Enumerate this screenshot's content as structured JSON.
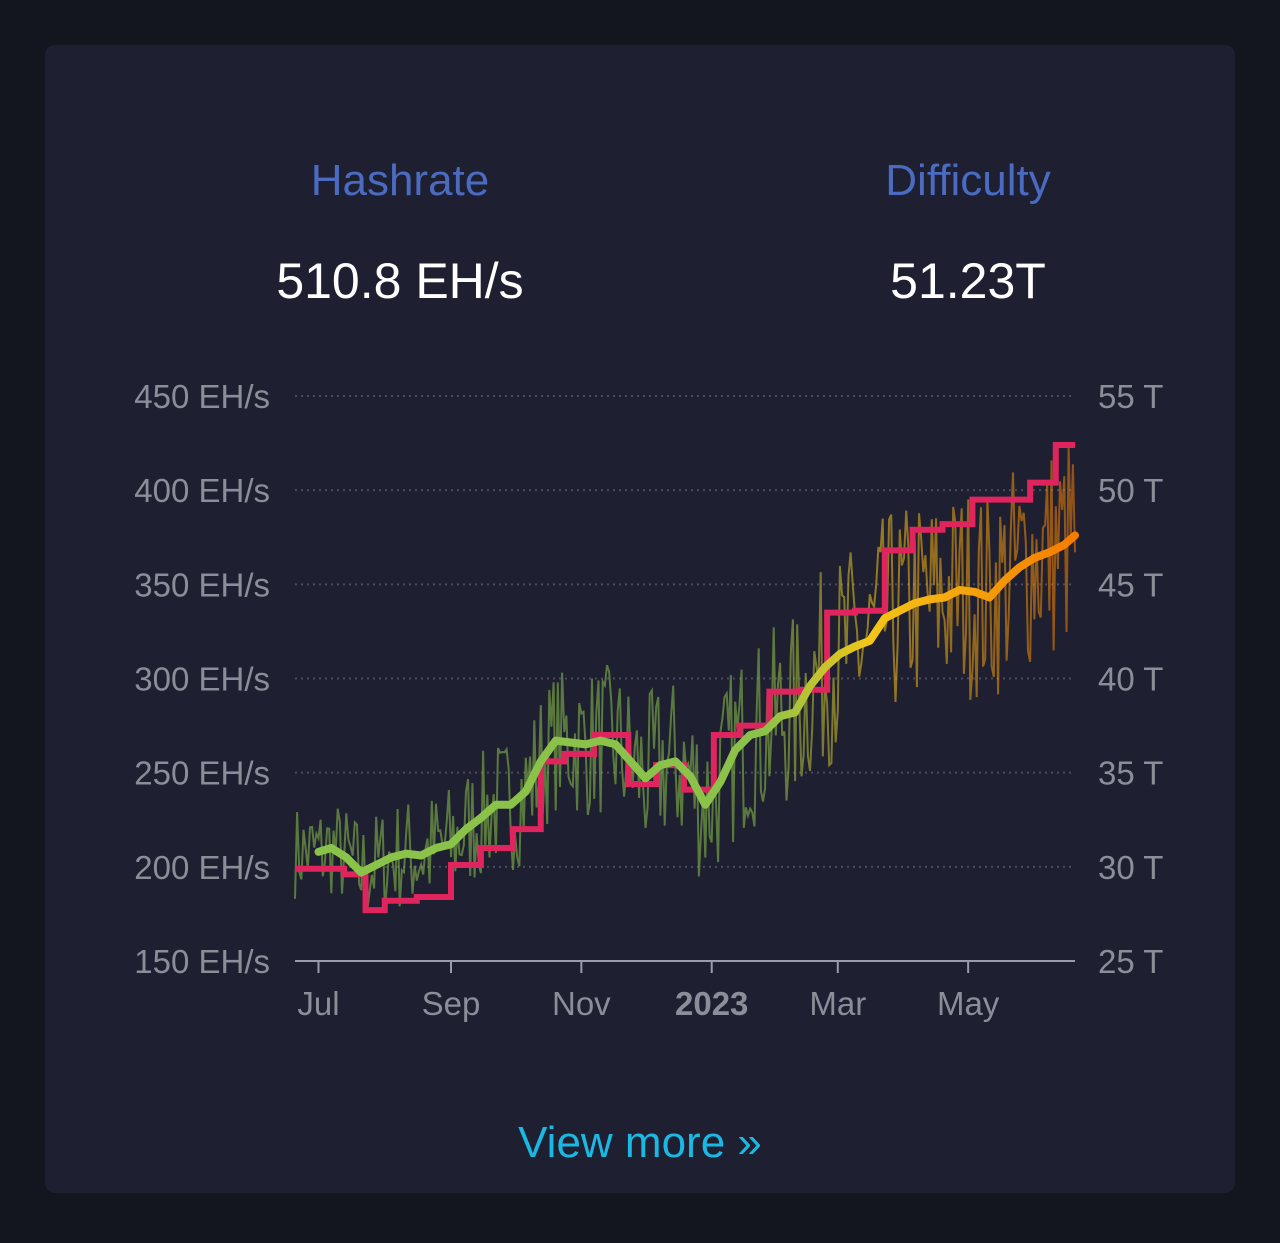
{
  "stats": {
    "hashrate_label": "Hashrate",
    "hashrate_value": "510.8 EH/s",
    "difficulty_label": "Difficulty",
    "difficulty_value": "51.23T"
  },
  "view_more_label": "View more »",
  "colors": {
    "difficulty_line": "#e0245e",
    "hashrate_ma_green": "#8bc34a",
    "hashrate_ma_yellow": "#f5c518",
    "hashrate_ma_orange": "#f57c00",
    "grid": "#4a4c5e",
    "tick_text": "#8b8d99"
  },
  "chart_data": {
    "type": "line",
    "x_axis": {
      "tick_labels": [
        "Jul",
        "Sep",
        "Nov",
        "2023",
        "Mar",
        "May"
      ],
      "tick_dates": [
        "2022-07-01",
        "2022-09-01",
        "2022-11-01",
        "2023-01-01",
        "2023-03-01",
        "2023-05-01"
      ],
      "range": [
        "2022-06-20",
        "2023-06-20"
      ]
    },
    "y_left": {
      "tick_labels": [
        "450 EH/s",
        "400 EH/s",
        "350 EH/s",
        "300 EH/s",
        "250 EH/s",
        "200 EH/s",
        "150 EH/s"
      ],
      "ylim": [
        150,
        450
      ]
    },
    "y_right": {
      "tick_labels": [
        "55 T",
        "50 T",
        "45 T",
        "40 T",
        "35 T",
        "30 T",
        "25 T"
      ],
      "ylim": [
        25,
        55
      ]
    },
    "grid": true,
    "series": [
      {
        "kind": "difficulty_step",
        "axis": "right",
        "points": [
          [
            "2022-06-20",
            29.9
          ],
          [
            "2022-07-13",
            29.6
          ],
          [
            "2022-07-23",
            27.7
          ],
          [
            "2022-08-01",
            28.2
          ],
          [
            "2022-08-16",
            28.4
          ],
          [
            "2022-09-01",
            30.1
          ],
          [
            "2022-09-15",
            31.0
          ],
          [
            "2022-09-30",
            32.0
          ],
          [
            "2022-10-13",
            35.6
          ],
          [
            "2022-10-24",
            36.0
          ],
          [
            "2022-11-07",
            37.0
          ],
          [
            "2022-11-23",
            34.4
          ],
          [
            "2022-12-06",
            35.4
          ],
          [
            "2022-12-19",
            34.1
          ],
          [
            "2023-01-02",
            37.0
          ],
          [
            "2023-01-14",
            37.5
          ],
          [
            "2023-01-28",
            39.3
          ],
          [
            "2023-02-11",
            39.4
          ],
          [
            "2023-02-24",
            43.5
          ],
          [
            "2023-03-09",
            43.6
          ],
          [
            "2023-03-23",
            46.8
          ],
          [
            "2023-04-05",
            47.9
          ],
          [
            "2023-04-19",
            48.2
          ],
          [
            "2023-05-03",
            49.5
          ],
          [
            "2023-05-17",
            49.5
          ],
          [
            "2023-05-30",
            50.4
          ],
          [
            "2023-06-11",
            52.4
          ],
          [
            "2023-06-20",
            52.4
          ]
        ]
      },
      {
        "kind": "hashrate_moving_average",
        "axis": "left",
        "points": [
          [
            "2022-06-20",
            208
          ],
          [
            "2022-07-01",
            208
          ],
          [
            "2022-07-07",
            210
          ],
          [
            "2022-07-14",
            205
          ],
          [
            "2022-07-21",
            197
          ],
          [
            "2022-07-28",
            201
          ],
          [
            "2022-08-04",
            205
          ],
          [
            "2022-08-11",
            207
          ],
          [
            "2022-08-18",
            206
          ],
          [
            "2022-08-25",
            210
          ],
          [
            "2022-09-01",
            212
          ],
          [
            "2022-09-08",
            220
          ],
          [
            "2022-09-15",
            226
          ],
          [
            "2022-09-22",
            233
          ],
          [
            "2022-09-29",
            233
          ],
          [
            "2022-10-06",
            240
          ],
          [
            "2022-10-13",
            256
          ],
          [
            "2022-10-20",
            267
          ],
          [
            "2022-10-27",
            266
          ],
          [
            "2022-11-03",
            265
          ],
          [
            "2022-11-10",
            267
          ],
          [
            "2022-11-17",
            265
          ],
          [
            "2022-11-24",
            256
          ],
          [
            "2022-12-01",
            247
          ],
          [
            "2022-12-08",
            254
          ],
          [
            "2022-12-15",
            256
          ],
          [
            "2022-12-22",
            248
          ],
          [
            "2022-12-29",
            233
          ],
          [
            "2023-01-05",
            245
          ],
          [
            "2023-01-12",
            262
          ],
          [
            "2023-01-19",
            270
          ],
          [
            "2023-01-26",
            272
          ],
          [
            "2023-02-02",
            280
          ],
          [
            "2023-02-09",
            282
          ],
          [
            "2023-02-16",
            296
          ],
          [
            "2023-02-23",
            306
          ],
          [
            "2023-03-02",
            313
          ],
          [
            "2023-03-09",
            317
          ],
          [
            "2023-03-16",
            320
          ],
          [
            "2023-03-23",
            332
          ],
          [
            "2023-03-30",
            336
          ],
          [
            "2023-04-06",
            340
          ],
          [
            "2023-04-13",
            342
          ],
          [
            "2023-04-20",
            343
          ],
          [
            "2023-04-27",
            347
          ],
          [
            "2023-05-04",
            346
          ],
          [
            "2023-05-11",
            343
          ],
          [
            "2023-05-18",
            352
          ],
          [
            "2023-05-25",
            359
          ],
          [
            "2023-06-01",
            364
          ],
          [
            "2023-06-08",
            367
          ],
          [
            "2023-06-15",
            371
          ],
          [
            "2023-06-20",
            376
          ]
        ]
      },
      {
        "kind": "hashrate_daily_noisy",
        "axis": "left",
        "note_amplitude": [
          [
            "2022-06-20",
            25
          ],
          [
            "2022-11-01",
            40
          ],
          [
            "2023-03-01",
            55
          ],
          [
            "2023-06-20",
            60
          ]
        ]
      }
    ]
  }
}
